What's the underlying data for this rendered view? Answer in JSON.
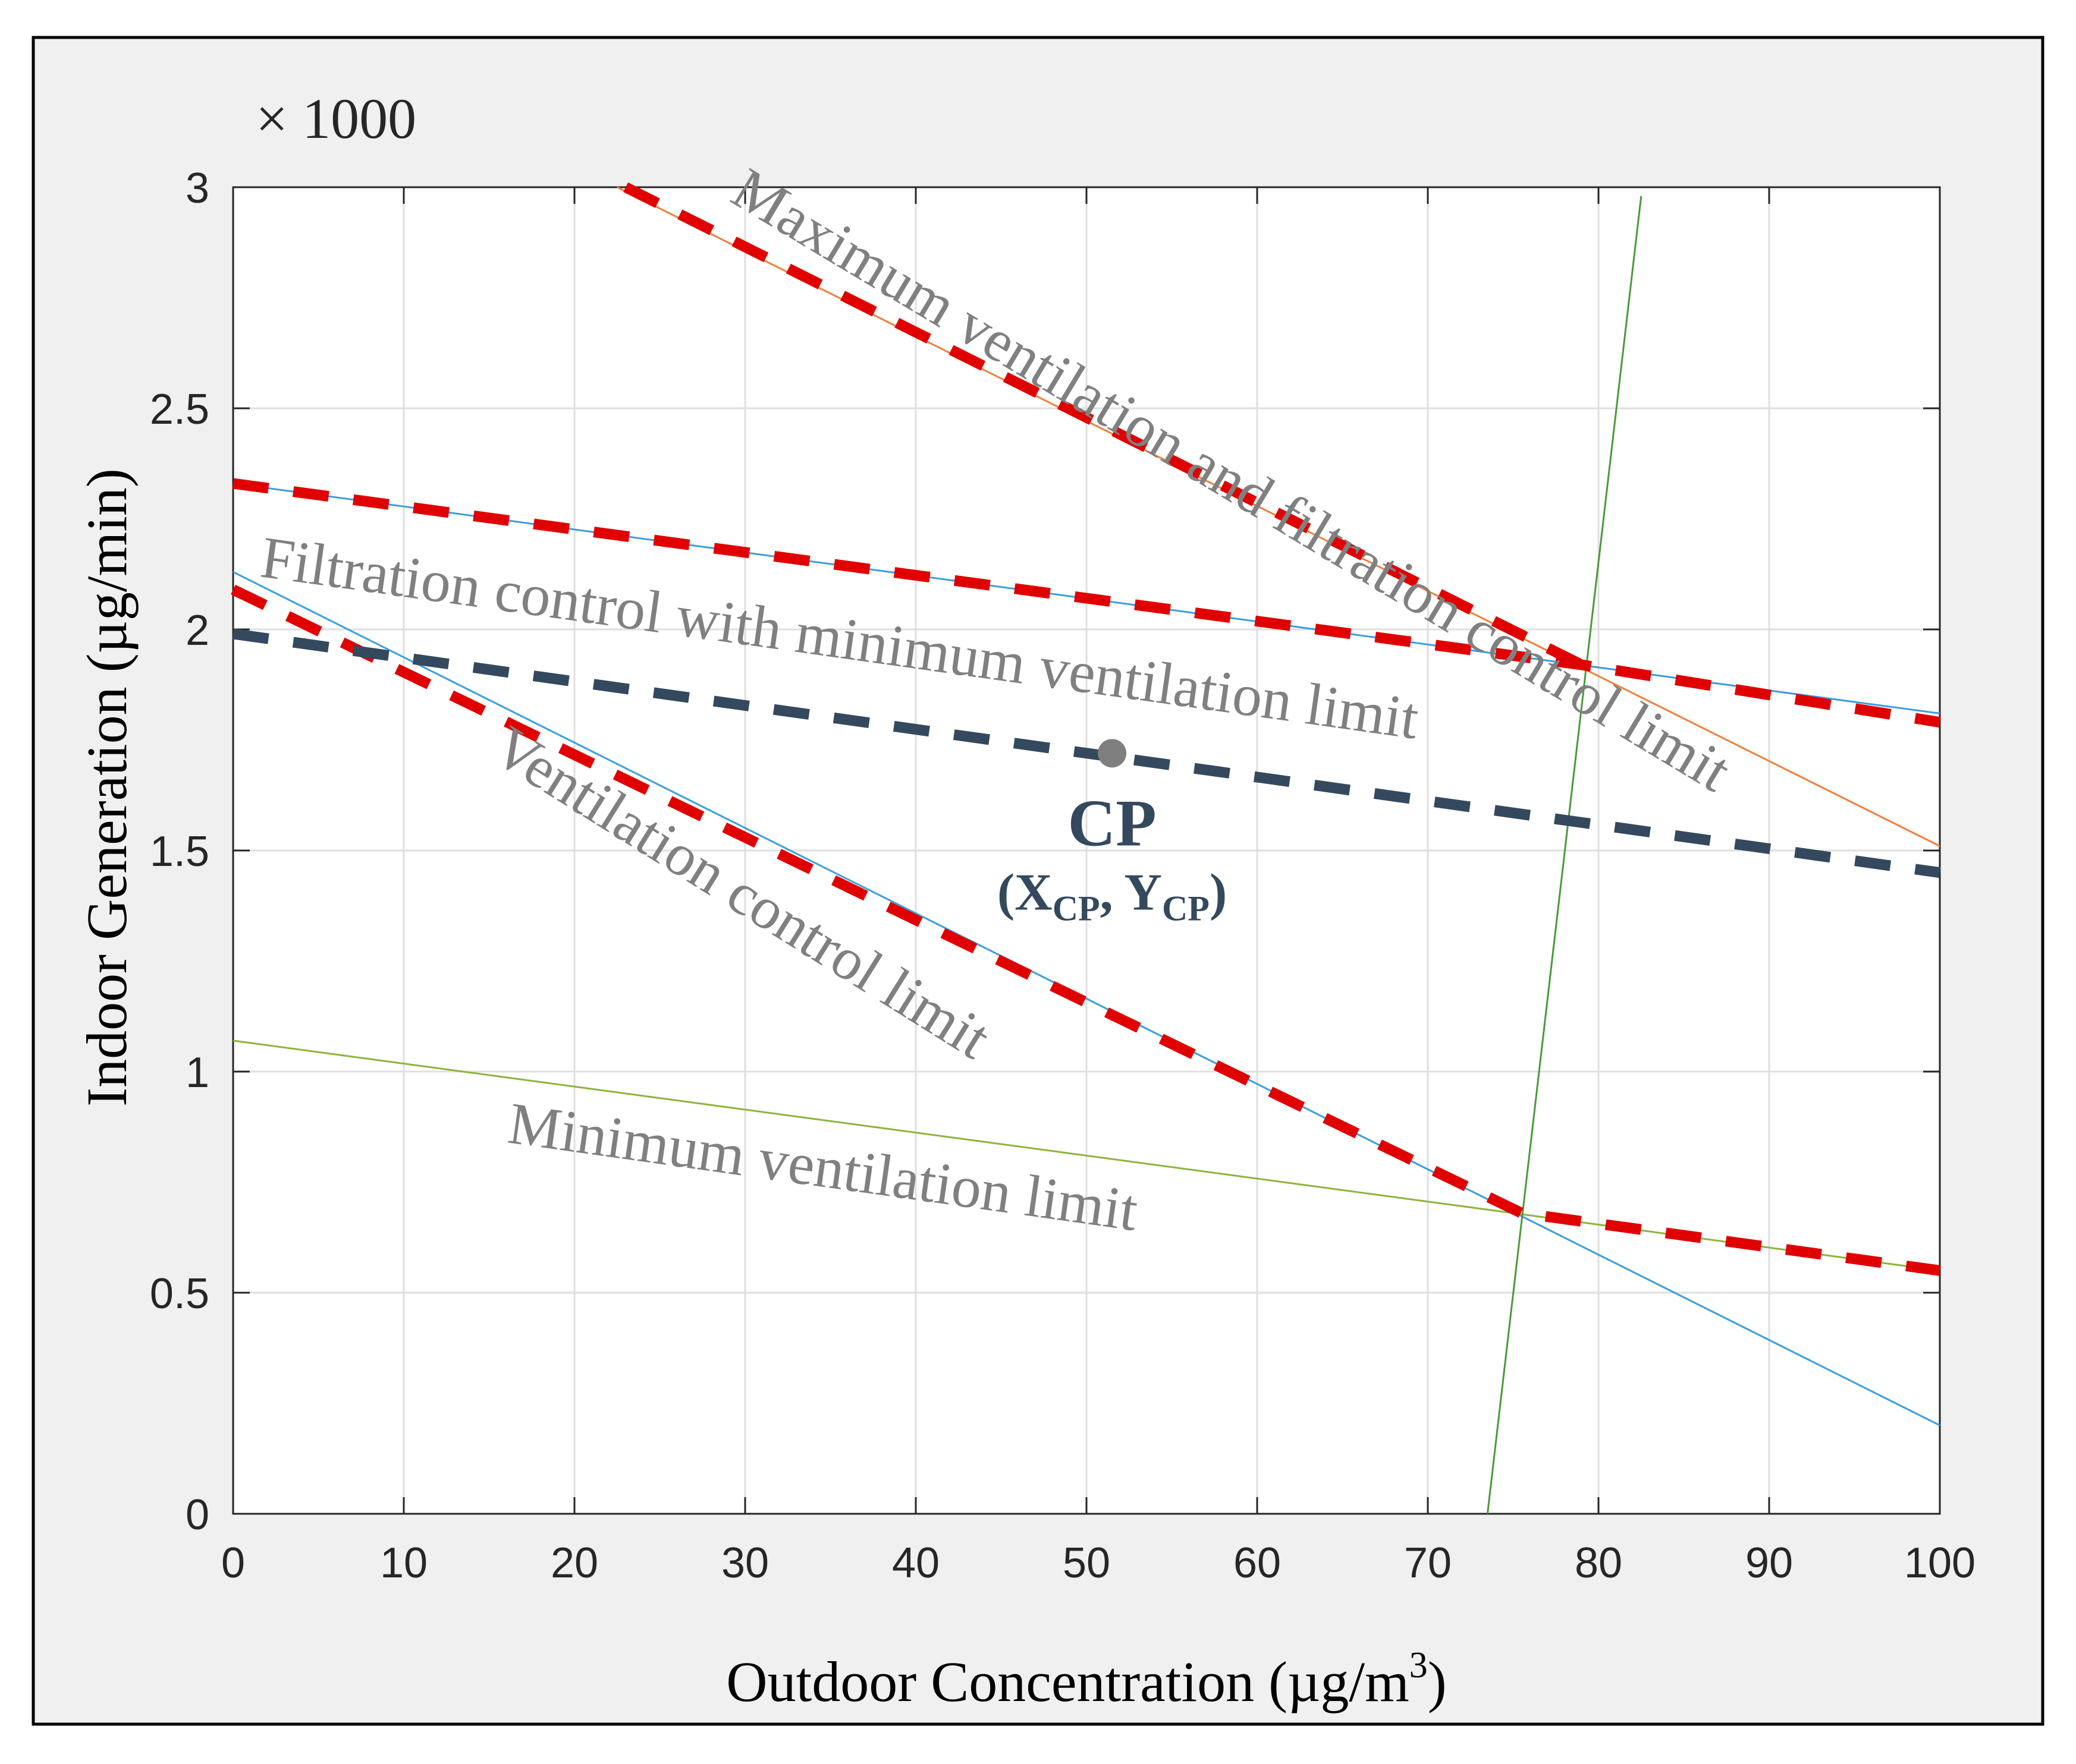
{
  "chart_data": {
    "type": "line",
    "xlabel": "Outdoor Concentration  (µg/m",
    "xlabel_sup": "3",
    "xlabel_close": ")",
    "ylabel": "Indoor Generation  (µg/min)",
    "y_multiplier": "× 1000",
    "xlim": [
      0,
      100
    ],
    "ylim": [
      0,
      3
    ],
    "grid": true,
    "x_ticks": [
      0,
      10,
      20,
      30,
      40,
      50,
      60,
      70,
      80,
      90,
      100
    ],
    "y_ticks": [
      0,
      0.5,
      1,
      1.5,
      2,
      2.5,
      3
    ],
    "x_tick_labels": [
      "0",
      "10",
      "20",
      "30",
      "40",
      "50",
      "60",
      "70",
      "80",
      "90",
      "100"
    ],
    "y_tick_labels": [
      "0",
      "0.5",
      "1",
      "1.5",
      "2",
      "2.5",
      "3"
    ],
    "series": [
      {
        "name": "maximum-ventilation-filtration-line",
        "style": "solid-thin",
        "color": "#f07f3c",
        "x": [
          22.5,
          100
        ],
        "y": [
          3.0,
          1.51
        ]
      },
      {
        "name": "filtration-min-ventilation-line",
        "style": "solid-thin",
        "color": "#3a9ee0",
        "x": [
          0,
          100
        ],
        "y": [
          2.33,
          1.81
        ]
      },
      {
        "name": "ventilation-control-line",
        "style": "solid-thin",
        "color": "#3a9ee0",
        "x": [
          0,
          100
        ],
        "y": [
          2.13,
          0.2
        ]
      },
      {
        "name": "minimum-ventilation-line",
        "style": "solid-thin",
        "color": "#8db33c",
        "x": [
          0,
          100
        ],
        "y": [
          1.07,
          0.55
        ]
      },
      {
        "name": "vertical-boundary-line",
        "style": "solid-thin",
        "color": "#4a9a3a",
        "x": [
          73.5,
          82.5
        ],
        "y": [
          0.0,
          2.98
        ]
      },
      {
        "name": "control-boundary-envelope",
        "style": "dashed-thick",
        "color": "#e00000",
        "x": [
          0,
          75.5,
          100
        ],
        "y": [
          2.09,
          0.68,
          0.55
        ]
      },
      {
        "name": "upper-boundary-envelope",
        "style": "dashed-thick",
        "color": "#e00000",
        "x": [
          0,
          79,
          100
        ],
        "y": [
          2.33,
          1.92,
          1.79
        ]
      },
      {
        "name": "max-ventilation-dashed",
        "style": "dashed-thick",
        "color": "#e00000",
        "x": [
          23,
          79
        ],
        "y": [
          3.0,
          1.92
        ]
      },
      {
        "name": "cp-line",
        "style": "dashed-thick",
        "color": "#34495e",
        "x": [
          0,
          100
        ],
        "y": [
          1.99,
          1.45
        ]
      }
    ],
    "point": {
      "label": "CP",
      "coord_label_main": "(X",
      "coord_label_sub": "CP",
      "coord_sep": ", Y",
      "coord_label_close": ")",
      "x": 51.5,
      "y": 1.72,
      "color": "#7f7f7f",
      "label_color": "#34495e"
    },
    "annotations": [
      {
        "text": "Maximum ventilation and filtration control limit",
        "x": 29,
        "y": 2.97,
        "angle_deg": 31
      },
      {
        "text": "Filtration control with minimum ventilation limit",
        "x": 1.5,
        "y": 2.12,
        "angle_deg": 8
      },
      {
        "text": "Ventilation control limit",
        "x": 15,
        "y": 1.71,
        "angle_deg": 32
      },
      {
        "text": "Minimum ventilation limit",
        "x": 16,
        "y": 0.84,
        "angle_deg": 8
      }
    ]
  }
}
